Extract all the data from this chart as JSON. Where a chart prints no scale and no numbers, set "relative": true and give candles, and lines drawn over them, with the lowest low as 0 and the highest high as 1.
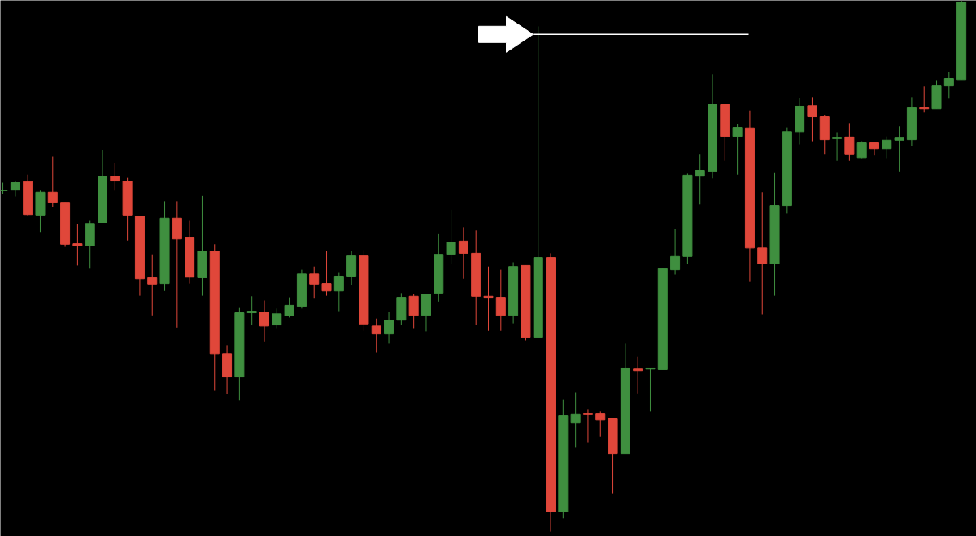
{
  "chart_data": {
    "type": "candlestick",
    "relative": true,
    "categories": [
      null,
      null,
      null,
      null,
      null,
      null,
      null,
      null,
      null,
      null,
      null,
      null,
      null,
      null,
      null,
      null,
      null,
      null,
      null,
      null,
      null,
      null,
      null,
      null,
      null,
      null,
      null,
      null,
      null,
      null,
      null,
      null,
      null,
      null,
      null,
      null,
      null,
      null,
      null,
      null,
      null,
      null,
      null,
      null,
      null,
      null,
      null,
      null,
      null,
      null,
      null,
      null,
      null,
      null,
      null,
      null,
      null,
      null,
      null,
      null,
      null,
      null,
      null,
      null,
      null,
      null,
      null,
      null,
      null,
      null,
      null,
      null,
      null,
      null,
      null,
      null,
      null,
      null
    ],
    "ohlc": [
      [
        0.642,
        0.657,
        0.636,
        0.643
      ],
      [
        0.643,
        0.66,
        0.631,
        0.657
      ],
      [
        0.659,
        0.672,
        0.594,
        0.597
      ],
      [
        0.596,
        0.642,
        0.564,
        0.639
      ],
      [
        0.639,
        0.706,
        0.611,
        0.62
      ],
      [
        0.62,
        0.62,
        0.536,
        0.541
      ],
      [
        0.542,
        0.579,
        0.501,
        0.538
      ],
      [
        0.538,
        0.585,
        0.495,
        0.58
      ],
      [
        0.582,
        0.718,
        0.582,
        0.669
      ],
      [
        0.669,
        0.694,
        0.642,
        0.66
      ],
      [
        0.66,
        0.666,
        0.548,
        0.596
      ],
      [
        0.594,
        0.594,
        0.444,
        0.476
      ],
      [
        0.478,
        0.522,
        0.407,
        0.466
      ],
      [
        0.467,
        0.622,
        0.453,
        0.59
      ],
      [
        0.59,
        0.622,
        0.384,
        0.551
      ],
      [
        0.553,
        0.585,
        0.467,
        0.479
      ],
      [
        0.478,
        0.632,
        0.444,
        0.528
      ],
      [
        0.528,
        0.541,
        0.265,
        0.335
      ],
      [
        0.335,
        0.351,
        0.259,
        0.291
      ],
      [
        0.291,
        0.421,
        0.247,
        0.412
      ],
      [
        0.412,
        0.443,
        0.389,
        0.415
      ],
      [
        0.413,
        0.435,
        0.358,
        0.387
      ],
      [
        0.389,
        0.42,
        0.383,
        0.41
      ],
      [
        0.406,
        0.441,
        0.403,
        0.426
      ],
      [
        0.424,
        0.493,
        0.42,
        0.485
      ],
      [
        0.485,
        0.499,
        0.44,
        0.466
      ],
      [
        0.467,
        0.528,
        0.444,
        0.453
      ],
      [
        0.453,
        0.487,
        0.415,
        0.481
      ],
      [
        0.481,
        0.528,
        0.464,
        0.519
      ],
      [
        0.519,
        0.53,
        0.378,
        0.391
      ],
      [
        0.387,
        0.401,
        0.337,
        0.372
      ],
      [
        0.372,
        0.413,
        0.354,
        0.398
      ],
      [
        0.398,
        0.449,
        0.389,
        0.441
      ],
      [
        0.443,
        0.447,
        0.383,
        0.407
      ],
      [
        0.407,
        0.447,
        0.377,
        0.447
      ],
      [
        0.449,
        0.56,
        0.433,
        0.522
      ],
      [
        0.522,
        0.606,
        0.504,
        0.545
      ],
      [
        0.547,
        0.573,
        0.476,
        0.524
      ],
      [
        0.524,
        0.567,
        0.389,
        0.443
      ],
      [
        0.443,
        0.499,
        0.378,
        0.441
      ],
      [
        0.441,
        0.493,
        0.378,
        0.407
      ],
      [
        0.407,
        0.507,
        0.392,
        0.499
      ],
      [
        0.501,
        0.501,
        0.36,
        0.366
      ],
      [
        0.366,
        0.951,
        0.366,
        0.516
      ],
      [
        0.516,
        0.524,
        0.0,
        0.037
      ],
      [
        0.037,
        0.248,
        0.025,
        0.219
      ],
      [
        0.205,
        0.262,
        0.158,
        0.221
      ],
      [
        0.222,
        0.23,
        0.167,
        0.221
      ],
      [
        0.222,
        0.227,
        0.179,
        0.211
      ],
      [
        0.213,
        0.213,
        0.072,
        0.147
      ],
      [
        0.147,
        0.354,
        0.147,
        0.308
      ],
      [
        0.306,
        0.329,
        0.26,
        0.303
      ],
      [
        0.306,
        0.308,
        0.227,
        0.308
      ],
      [
        0.305,
        0.495,
        0.305,
        0.495
      ],
      [
        0.493,
        0.57,
        0.484,
        0.518
      ],
      [
        0.518,
        0.674,
        0.504,
        0.671
      ],
      [
        0.669,
        0.711,
        0.616,
        0.68
      ],
      [
        0.678,
        0.861,
        0.665,
        0.804
      ],
      [
        0.804,
        0.804,
        0.698,
        0.744
      ],
      [
        0.744,
        0.767,
        0.672,
        0.761
      ],
      [
        0.76,
        0.793,
        0.47,
        0.534
      ],
      [
        0.534,
        0.639,
        0.409,
        0.504
      ],
      [
        0.504,
        0.675,
        0.444,
        0.614
      ],
      [
        0.614,
        0.761,
        0.599,
        0.753
      ],
      [
        0.753,
        0.816,
        0.729,
        0.801
      ],
      [
        0.802,
        0.818,
        0.735,
        0.781
      ],
      [
        0.781,
        0.784,
        0.711,
        0.738
      ],
      [
        0.74,
        0.752,
        0.698,
        0.741
      ],
      [
        0.743,
        0.769,
        0.698,
        0.711
      ],
      [
        0.704,
        0.735,
        0.703,
        0.732
      ],
      [
        0.732,
        0.732,
        0.708,
        0.721
      ],
      [
        0.721,
        0.744,
        0.703,
        0.737
      ],
      [
        0.737,
        0.763,
        0.678,
        0.741
      ],
      [
        0.738,
        0.818,
        0.726,
        0.798
      ],
      [
        0.798,
        0.838,
        0.789,
        0.796
      ],
      [
        0.796,
        0.85,
        0.796,
        0.839
      ],
      [
        0.839,
        0.865,
        0.815,
        0.853
      ],
      [
        0.851,
        1.0,
        0.851,
        0.997
      ]
    ],
    "colors": [
      "#3f8f3f",
      "#3f8f3f",
      "#e0473a",
      "#3f8f3f",
      "#e0473a",
      "#e0473a",
      "#e0473a",
      "#3f8f3f",
      "#3f8f3f",
      "#e0473a",
      "#e0473a",
      "#e0473a",
      "#e0473a",
      "#3f8f3f",
      "#e0473a",
      "#e0473a",
      "#3f8f3f",
      "#e0473a",
      "#e0473a",
      "#3f8f3f",
      "#3f8f3f",
      "#e0473a",
      "#3f8f3f",
      "#3f8f3f",
      "#3f8f3f",
      "#e0473a",
      "#e0473a",
      "#3f8f3f",
      "#3f8f3f",
      "#e0473a",
      "#e0473a",
      "#3f8f3f",
      "#3f8f3f",
      "#e0473a",
      "#3f8f3f",
      "#3f8f3f",
      "#3f8f3f",
      "#e0473a",
      "#e0473a",
      "#e0473a",
      "#e0473a",
      "#3f8f3f",
      "#e0473a",
      "#3f8f3f",
      "#e0473a",
      "#3f8f3f",
      "#3f8f3f",
      "#e0473a",
      "#e0473a",
      "#e0473a",
      "#3f8f3f",
      "#e0473a",
      "#3f8f3f",
      "#3f8f3f",
      "#3f8f3f",
      "#3f8f3f",
      "#3f8f3f",
      "#3f8f3f",
      "#e0473a",
      "#3f8f3f",
      "#e0473a",
      "#e0473a",
      "#3f8f3f",
      "#3f8f3f",
      "#3f8f3f",
      "#e0473a",
      "#e0473a",
      "#3f8f3f",
      "#e0473a",
      "#3f8f3f",
      "#e0473a",
      "#3f8f3f",
      "#3f8f3f",
      "#3f8f3f",
      "#e0473a",
      "#3f8f3f",
      "#3f8f3f",
      "#3f8f3f"
    ],
    "ref_lines": [
      {
        "axis": "y",
        "value": 0.936,
        "color": "#ffffff",
        "line_style": "solid"
      }
    ]
  }
}
